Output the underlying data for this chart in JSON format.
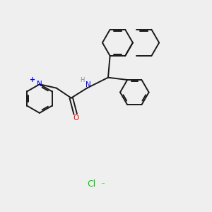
{
  "bg_color": "#efefef",
  "bond_color": "#1a1a1a",
  "bond_lw": 1.4,
  "N_color": "#0000ff",
  "O_color": "#ff0000",
  "Cl_color": "#00cc00",
  "H_color": "#888888",
  "figsize": [
    3.0,
    3.0
  ],
  "dpi": 100,
  "xlim": [
    0,
    10
  ],
  "ylim": [
    0,
    10
  ]
}
